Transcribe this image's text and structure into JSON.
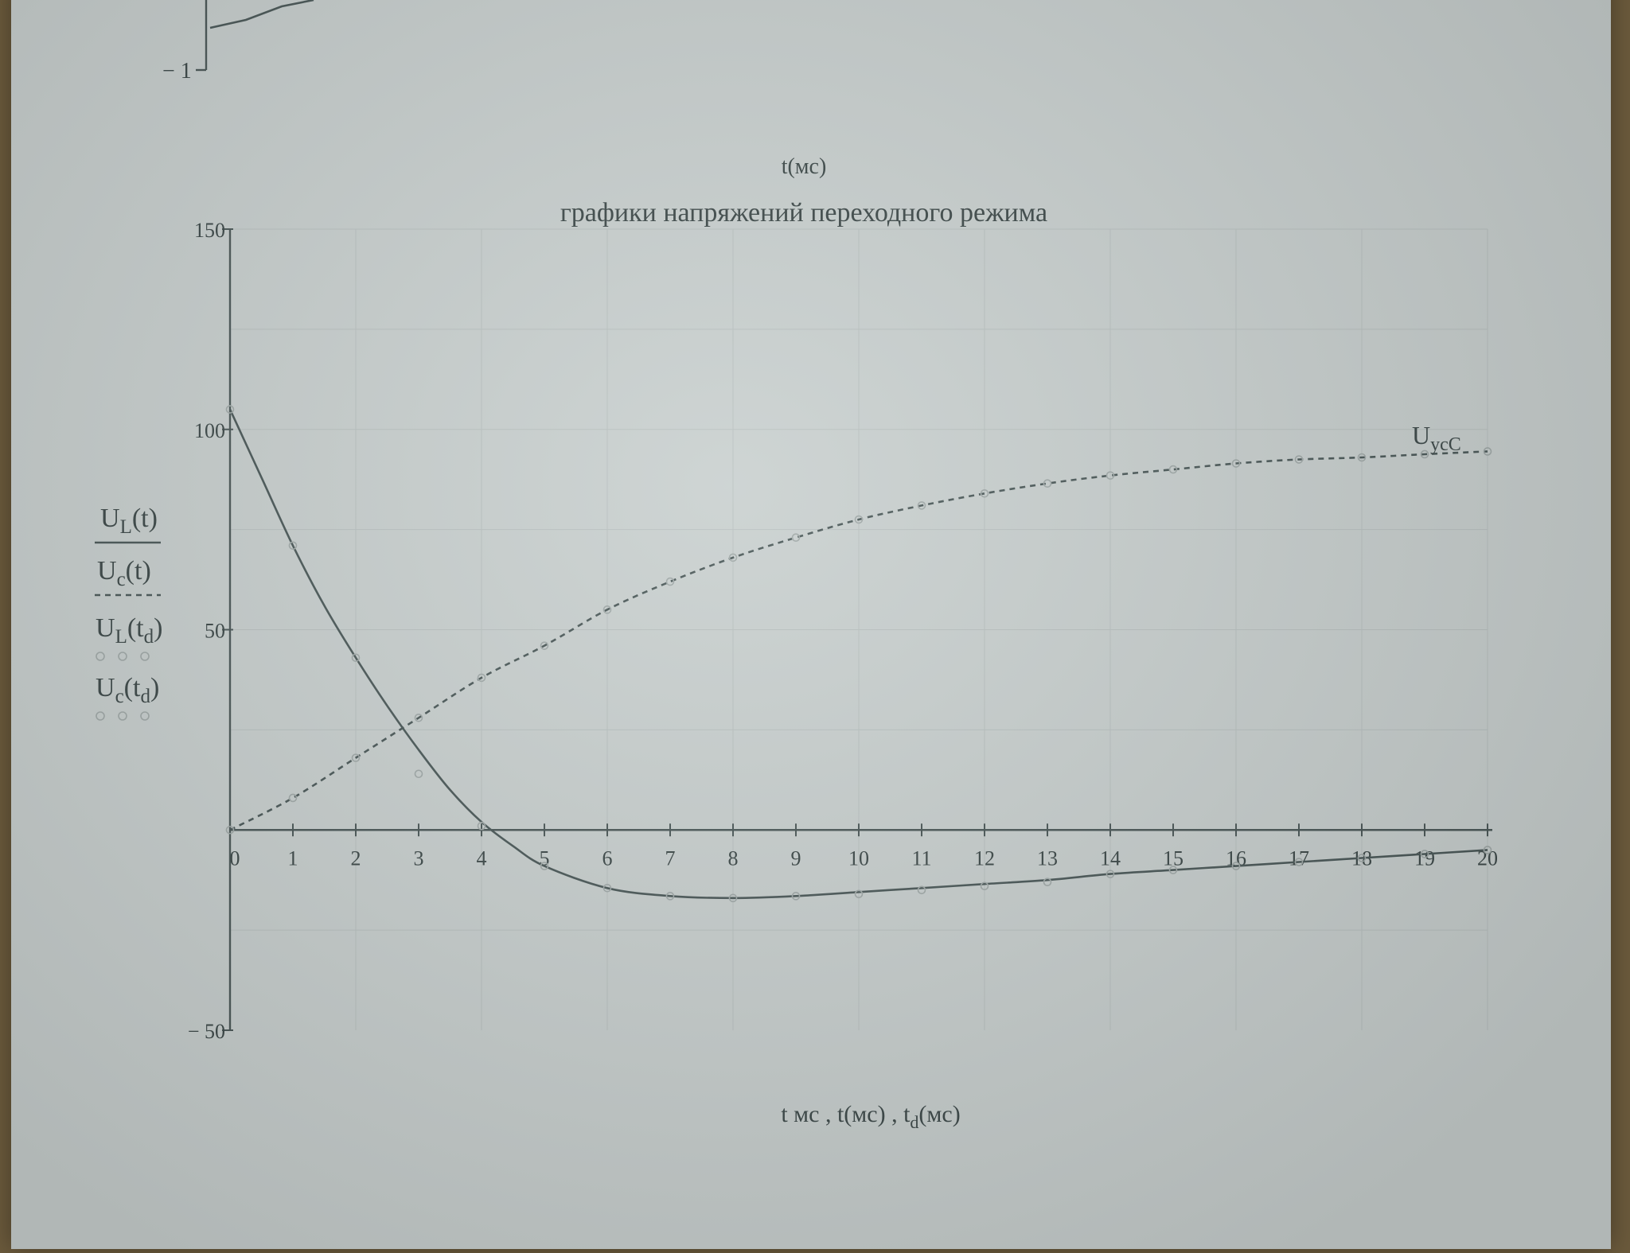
{
  "window": {
    "background": "#c9d0cf",
    "ink": "#3c4848"
  },
  "top_fragment": {
    "ytick": "− 1"
  },
  "top_xlabel": "t(мс)",
  "chart_data": {
    "type": "line",
    "title": "графики напряжений переходного режима",
    "xlabel": "t мс , t(мс) , t_d(мс)",
    "xlabel_parts": {
      "a": "t мс , t(мс) , t",
      "sub": "d",
      "b": "(мс)"
    },
    "ylabel_parts": [
      {
        "main": "U",
        "sub": "L",
        "arg": "(t)"
      },
      {
        "main": "U",
        "sub": "c",
        "arg": "(t)"
      },
      {
        "main": "U",
        "sub": "L",
        "arg": "(t",
        "argsub": "d",
        "close": ")"
      },
      {
        "main": "U",
        "sub": "c",
        "arg": "(t",
        "argsub": "d",
        "close": ")"
      }
    ],
    "annotation": {
      "main": "U",
      "sub": "ycC"
    },
    "xlim": [
      0,
      20
    ],
    "ylim": [
      -50,
      150
    ],
    "x_ticks": [
      "0",
      "1",
      "2",
      "3",
      "4",
      "5",
      "6",
      "7",
      "8",
      "9",
      "10",
      "11",
      "12",
      "13",
      "14",
      "15",
      "16",
      "17",
      "18",
      "19",
      "20"
    ],
    "y_ticks": [
      {
        "value": 150,
        "label": "150"
      },
      {
        "value": 100,
        "label": "100"
      },
      {
        "value": 50,
        "label": "50"
      },
      {
        "value": -50,
        "label": "− 50"
      }
    ],
    "grid": true,
    "series": [
      {
        "name": "U_L(t)",
        "style": "solid",
        "x": [
          0,
          0.5,
          1,
          1.5,
          2,
          2.5,
          3,
          3.5,
          4,
          4.5,
          5,
          6,
          7,
          8,
          9,
          10,
          11,
          12,
          13,
          14,
          15,
          16,
          17,
          18,
          19,
          20
        ],
        "y": [
          105,
          88,
          71,
          56,
          43,
          31,
          20,
          10,
          2,
          -4,
          -9,
          -14.5,
          -16.5,
          -17,
          -16.5,
          -15.5,
          -14.5,
          -13.5,
          -12.5,
          -11,
          -10,
          -9,
          -8,
          -7,
          -6,
          -5
        ]
      },
      {
        "name": "U_c(t)",
        "style": "dashed",
        "x": [
          0,
          1,
          2,
          3,
          4,
          5,
          6,
          7,
          8,
          9,
          10,
          11,
          12,
          13,
          14,
          15,
          16,
          17,
          18,
          19,
          20
        ],
        "y": [
          0,
          8,
          18,
          28,
          38,
          46,
          55,
          62,
          68,
          73,
          77.5,
          81,
          84,
          86.5,
          88.5,
          90,
          91.5,
          92.5,
          93,
          93.8,
          94.5
        ]
      }
    ],
    "markers": {
      "UL_td": {
        "x": [
          0,
          1,
          2,
          3,
          4,
          5,
          6,
          7,
          8,
          9,
          10,
          11,
          12,
          13,
          14,
          15,
          16,
          17,
          18,
          19,
          20
        ],
        "y": [
          105,
          71,
          43,
          14,
          1,
          -9,
          -14.5,
          -16.5,
          -17,
          -16.5,
          -16,
          -15,
          -14,
          -13,
          -11,
          -10,
          -9,
          -8,
          -7,
          -6,
          -5
        ]
      },
      "Uc_td": {
        "x": [
          0,
          1,
          2,
          3,
          4,
          5,
          6,
          7,
          8,
          9,
          10,
          11,
          12,
          13,
          14,
          15,
          16,
          17,
          18,
          19,
          20
        ],
        "y": [
          0,
          8,
          18,
          28,
          38,
          46,
          55,
          62,
          68,
          73,
          77.5,
          81,
          84,
          86.5,
          88.5,
          90,
          91.5,
          92.5,
          93,
          93.8,
          94.5
        ]
      }
    }
  }
}
